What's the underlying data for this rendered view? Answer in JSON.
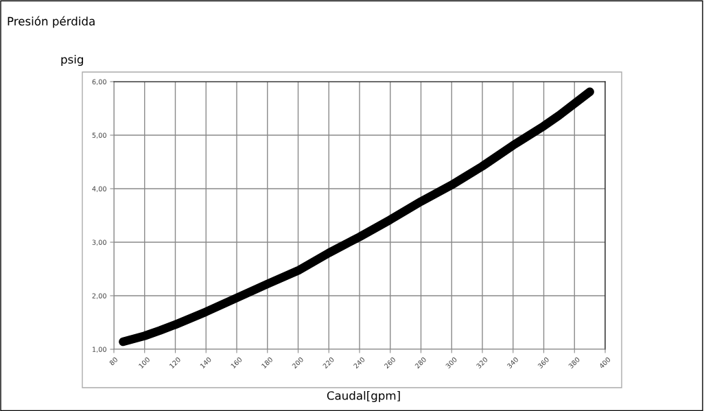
{
  "chart_data": {
    "type": "line",
    "title": "Presión pérdida",
    "ylabel": "psig",
    "xlabel": "Caudal[gpm]",
    "x": [
      86,
      100,
      110,
      120,
      140,
      160,
      180,
      200,
      220,
      240,
      260,
      280,
      300,
      320,
      340,
      360,
      370,
      390
    ],
    "series": [
      {
        "color": "#000000",
        "values": [
          1.14,
          1.25,
          1.35,
          1.46,
          1.7,
          1.96,
          2.22,
          2.47,
          2.8,
          3.1,
          3.42,
          3.76,
          4.07,
          4.42,
          4.81,
          5.17,
          5.37,
          5.81
        ]
      }
    ],
    "xlim": [
      80,
      400
    ],
    "xticks": [
      80,
      100,
      120,
      140,
      160,
      180,
      200,
      220,
      240,
      260,
      280,
      300,
      320,
      340,
      360,
      380,
      400
    ],
    "ylim": [
      1,
      6
    ],
    "yticks": [
      {
        "value": 1,
        "label": "1,00"
      },
      {
        "value": 2,
        "label": "2,00"
      },
      {
        "value": 3,
        "label": "3,00"
      },
      {
        "value": 4,
        "label": "4,00"
      },
      {
        "value": 5,
        "label": "5,00"
      },
      {
        "value": 6,
        "label": "6,00"
      }
    ],
    "grid": true,
    "line_style": "solid",
    "legend": false
  }
}
